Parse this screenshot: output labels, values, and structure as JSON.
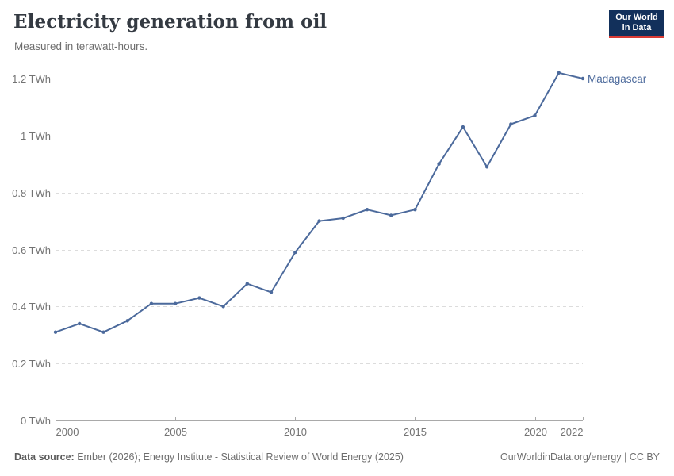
{
  "header": {
    "title": "Electricity generation from oil",
    "subtitle": "Measured in terawatt-hours.",
    "logo_line1": "Our World",
    "logo_line2": "in Data"
  },
  "chart_data": {
    "type": "line",
    "title": "Electricity generation from oil",
    "subtitle": "Measured in terawatt-hours.",
    "unit": "TWh",
    "xlabel": "",
    "ylabel": "terawatt-hours",
    "xlim": [
      2000,
      2022
    ],
    "ylim": [
      0,
      1.2
    ],
    "grid": "horizontal-dashed",
    "legend_position": "end-of-line-label",
    "x_ticks": [
      "2000",
      "2005",
      "2010",
      "2015",
      "2020",
      "2022"
    ],
    "y_tick_values": [
      0,
      0.2,
      0.4,
      0.6,
      0.8,
      1,
      1.2
    ],
    "y_tick_labels": [
      "0 TWh",
      "0.2 TWh",
      "0.4 TWh",
      "0.6 TWh",
      "0.8 TWh",
      "1 TWh",
      "1.2 TWh"
    ],
    "x": [
      2000,
      2001,
      2002,
      2003,
      2004,
      2005,
      2006,
      2007,
      2008,
      2009,
      2010,
      2011,
      2012,
      2013,
      2014,
      2015,
      2016,
      2017,
      2018,
      2019,
      2020,
      2021,
      2022
    ],
    "series": [
      {
        "name": "Madagascar",
        "color": "#4C6A9C",
        "values": [
          0.31,
          0.34,
          0.31,
          0.35,
          0.41,
          0.41,
          0.43,
          0.4,
          0.48,
          0.45,
          0.59,
          0.7,
          0.71,
          0.74,
          0.72,
          0.74,
          0.9,
          1.03,
          0.89,
          1.04,
          1.07,
          1.22,
          1.2
        ]
      }
    ]
  },
  "footer": {
    "source_bold": "Data source:",
    "source_rest": " Ember (2026); Energy Institute - Statistical Review of World Energy (2025)",
    "right": "OurWorldinData.org/energy | CC BY"
  },
  "colors": {
    "line": "#4C6A9C",
    "grid": "#dcdcdc",
    "axis": "#a9a9a9",
    "tick_label": "#737373",
    "title": "#343a42",
    "subtitle": "#6e6e6e",
    "footer": "#6e6e6e",
    "logo_bg": "#12305b",
    "logo_red": "#d93a34"
  }
}
